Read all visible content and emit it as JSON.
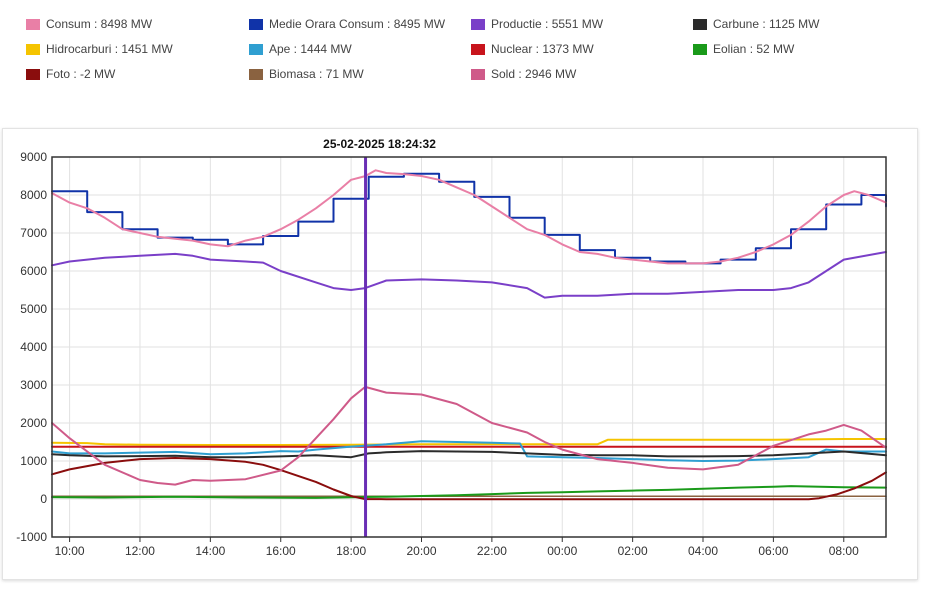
{
  "legend": [
    {
      "label": "Consum : 8498 MW",
      "color": "#e97fa6"
    },
    {
      "label": "Medie Orara Consum : 8495 MW",
      "color": "#1033a8"
    },
    {
      "label": "Productie : 5551 MW",
      "color": "#7a3fc8"
    },
    {
      "label": "Carbune : 1125 MW",
      "color": "#2b2b2b"
    },
    {
      "label": "Hidrocarburi : 1451 MW",
      "color": "#f5c400"
    },
    {
      "label": "Ape : 1444 MW",
      "color": "#2f9fd1"
    },
    {
      "label": "Nuclear : 1373 MW",
      "color": "#c8141c"
    },
    {
      "label": "Eolian : 52 MW",
      "color": "#1a9a1a"
    },
    {
      "label": "Foto : -2 MW",
      "color": "#8a0d0d"
    },
    {
      "label": "Biomasa : 71 MW",
      "color": "#8a6240"
    },
    {
      "label": "Sold : 2946 MW",
      "color": "#cf5a89"
    }
  ],
  "cursor_label": "25-02-2025 18:24:32",
  "chart_data": {
    "type": "line",
    "xlim": [
      9.5,
      33.2
    ],
    "ylim": [
      -1000,
      9000
    ],
    "yticks": [
      -1000,
      0,
      1000,
      2000,
      3000,
      4000,
      5000,
      6000,
      7000,
      8000,
      9000
    ],
    "xticks": [
      {
        "x": 10,
        "label": "10:00"
      },
      {
        "x": 12,
        "label": "12:00"
      },
      {
        "x": 14,
        "label": "14:00"
      },
      {
        "x": 16,
        "label": "16:00"
      },
      {
        "x": 18,
        "label": "18:00"
      },
      {
        "x": 20,
        "label": "20:00"
      },
      {
        "x": 22,
        "label": "22:00"
      },
      {
        "x": 24,
        "label": "00:00"
      },
      {
        "x": 26,
        "label": "02:00"
      },
      {
        "x": 28,
        "label": "04:00"
      },
      {
        "x": 30,
        "label": "06:00"
      },
      {
        "x": 32,
        "label": "08:00"
      }
    ],
    "cursor_x": 18.41,
    "grid": true,
    "legend_position": "top",
    "series": [
      {
        "name": "Hidrocarburi",
        "color": "#f5c400",
        "width": 2,
        "x": [
          9.5,
          10.5,
          11,
          12,
          14,
          16,
          18,
          20,
          22,
          24,
          25,
          25.3,
          26,
          28,
          30,
          32,
          33.2
        ],
        "y": [
          1480,
          1470,
          1440,
          1430,
          1420,
          1420,
          1430,
          1440,
          1440,
          1440,
          1440,
          1560,
          1560,
          1560,
          1560,
          1580,
          1580
        ]
      },
      {
        "name": "Nuclear",
        "color": "#c8141c",
        "width": 2,
        "x": [
          9.5,
          12,
          16,
          20,
          24,
          28,
          32,
          33.2
        ],
        "y": [
          1373,
          1373,
          1373,
          1373,
          1373,
          1373,
          1373,
          1373
        ]
      },
      {
        "name": "Ape",
        "color": "#2f9fd1",
        "width": 2,
        "x": [
          9.5,
          10,
          11,
          12,
          13,
          14,
          15,
          16,
          16.5,
          17,
          18,
          19,
          20,
          21,
          22,
          22.8,
          23,
          24,
          25,
          26,
          27,
          28,
          29,
          30,
          31,
          31.5,
          32,
          33.2
        ],
        "y": [
          1250,
          1200,
          1200,
          1220,
          1240,
          1180,
          1200,
          1260,
          1250,
          1300,
          1380,
          1440,
          1520,
          1500,
          1480,
          1460,
          1120,
          1100,
          1080,
          1050,
          1020,
          1000,
          1010,
          1050,
          1100,
          1300,
          1250,
          1250
        ]
      },
      {
        "name": "Carbune",
        "color": "#2b2b2b",
        "width": 2,
        "x": [
          9.5,
          10,
          11,
          12,
          13,
          14,
          15,
          16,
          17,
          18,
          18.5,
          19,
          20,
          21,
          22,
          23,
          24,
          25,
          26,
          27,
          28,
          29,
          30,
          31,
          32,
          33.2
        ],
        "y": [
          1180,
          1150,
          1120,
          1130,
          1140,
          1100,
          1100,
          1120,
          1150,
          1100,
          1200,
          1230,
          1260,
          1250,
          1240,
          1200,
          1160,
          1150,
          1150,
          1120,
          1120,
          1130,
          1150,
          1200,
          1250,
          1150
        ]
      },
      {
        "name": "Biomasa",
        "color": "#8a6240",
        "width": 1.5,
        "x": [
          9.5,
          16,
          20,
          24,
          28,
          32,
          33.2
        ],
        "y": [
          71,
          71,
          71,
          71,
          71,
          71,
          71
        ]
      },
      {
        "name": "Eolian",
        "color": "#1a9a1a",
        "width": 2,
        "x": [
          9.5,
          11,
          13,
          15,
          17,
          18.4,
          19,
          20,
          21,
          22,
          23,
          24,
          25,
          26,
          27,
          28,
          29,
          30,
          30.5,
          31,
          32,
          33.2
        ],
        "y": [
          50,
          40,
          60,
          40,
          30,
          52,
          60,
          80,
          100,
          130,
          160,
          180,
          200,
          220,
          240,
          270,
          300,
          320,
          340,
          330,
          310,
          300
        ]
      },
      {
        "name": "Foto",
        "color": "#8a0d0d",
        "width": 2,
        "x": [
          9.5,
          10,
          11,
          12,
          13,
          14,
          15,
          15.5,
          16,
          17,
          17.5,
          18,
          18.4,
          19,
          20,
          24,
          28,
          30,
          31,
          31.3,
          31.8,
          32.3,
          32.8,
          33.2
        ],
        "y": [
          650,
          780,
          950,
          1050,
          1080,
          1050,
          980,
          900,
          760,
          450,
          250,
          80,
          -2,
          -5,
          -5,
          -5,
          -5,
          -5,
          -5,
          20,
          120,
          280,
          480,
          700
        ]
      },
      {
        "name": "Sold",
        "color": "#cf5a89",
        "width": 2,
        "x": [
          9.5,
          10,
          11,
          12,
          12.5,
          13,
          13.5,
          14,
          15,
          16,
          16.5,
          17,
          17.5,
          18,
          18.4,
          19,
          20,
          21,
          22,
          23,
          23.5,
          24,
          25,
          26,
          27,
          28,
          29,
          30,
          31,
          31.5,
          32,
          32.5,
          33.2
        ],
        "y": [
          2000,
          1600,
          900,
          500,
          420,
          380,
          500,
          480,
          520,
          750,
          1100,
          1600,
          2100,
          2650,
          2950,
          2800,
          2750,
          2500,
          2000,
          1750,
          1500,
          1300,
          1050,
          950,
          820,
          780,
          900,
          1400,
          1700,
          1800,
          1950,
          1800,
          1350
        ]
      },
      {
        "name": "Productie",
        "color": "#7a3fc8",
        "width": 2,
        "x": [
          9.5,
          10,
          11,
          12,
          13,
          13.5,
          14,
          15,
          15.5,
          16,
          17,
          17.5,
          18,
          18.4,
          19,
          20,
          21,
          22,
          23,
          23.5,
          24,
          25,
          26,
          27,
          28,
          29,
          30,
          30.5,
          31,
          31.5,
          32,
          33.2
        ],
        "y": [
          6150,
          6250,
          6350,
          6400,
          6450,
          6400,
          6300,
          6250,
          6220,
          6000,
          5700,
          5550,
          5500,
          5551,
          5750,
          5780,
          5750,
          5700,
          5550,
          5300,
          5350,
          5350,
          5400,
          5400,
          5450,
          5500,
          5500,
          5550,
          5700,
          6000,
          6300,
          6500
        ]
      },
      {
        "name": "Medie Orara Consum",
        "color": "#1033a8",
        "width": 2,
        "step": true,
        "x": [
          9.5,
          10.5,
          11.5,
          12.5,
          13.5,
          14.5,
          15.5,
          16.5,
          17.5,
          18.5,
          19.5,
          20.5,
          21.5,
          22.5,
          23.5,
          24.5,
          25.5,
          26.5,
          27.5,
          28.5,
          29.5,
          30.5,
          31.5,
          32.5,
          33.2
        ],
        "y": [
          8100,
          7550,
          7100,
          6880,
          6820,
          6700,
          6920,
          7300,
          7900,
          8480,
          8560,
          8350,
          7950,
          7400,
          6950,
          6550,
          6350,
          6250,
          6200,
          6300,
          6600,
          7100,
          7750,
          8000,
          7700
        ]
      },
      {
        "name": "Consum",
        "color": "#e97fa6",
        "width": 2,
        "x": [
          9.5,
          10,
          10.5,
          11,
          11.5,
          12,
          12.5,
          13,
          13.5,
          14,
          14.5,
          15,
          15.5,
          16,
          16.5,
          17,
          17.5,
          18,
          18.4,
          18.7,
          19,
          19.5,
          20,
          20.5,
          21,
          21.5,
          22,
          22.5,
          23,
          23.5,
          24,
          24.5,
          25,
          25.5,
          26,
          26.5,
          27,
          27.5,
          28,
          28.5,
          29,
          29.5,
          30,
          30.5,
          31,
          31.5,
          32,
          32.3,
          32.7,
          33.2
        ],
        "y": [
          8050,
          7800,
          7650,
          7400,
          7100,
          7000,
          6900,
          6850,
          6800,
          6700,
          6650,
          6800,
          6900,
          7100,
          7350,
          7650,
          8000,
          8400,
          8498,
          8650,
          8580,
          8550,
          8500,
          8400,
          8200,
          8000,
          7700,
          7400,
          7100,
          6950,
          6700,
          6500,
          6450,
          6350,
          6300,
          6250,
          6200,
          6200,
          6200,
          6250,
          6350,
          6500,
          6700,
          6950,
          7300,
          7700,
          8000,
          8100,
          8000,
          7800
        ]
      }
    ]
  }
}
